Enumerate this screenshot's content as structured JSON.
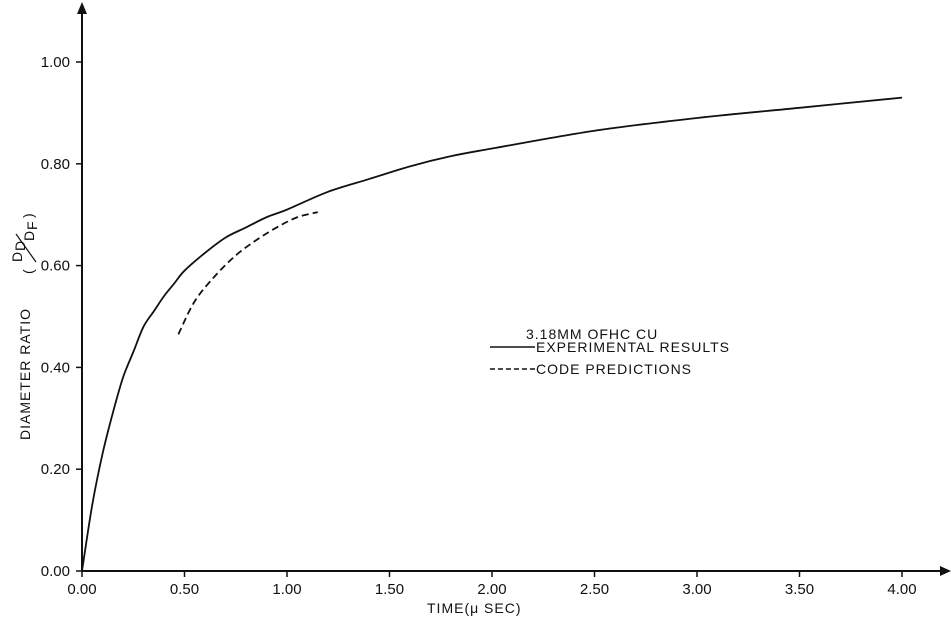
{
  "chart_data": {
    "type": "line",
    "xlabel": "TIME(μ SEC)",
    "ylabel": "DIAMETER RATIO",
    "ylabel_fraction": {
      "numerator": "D",
      "numerator_sub": "D",
      "denominator": "D",
      "denominator_sub": "F"
    },
    "xlim": [
      0,
      4.0
    ],
    "ylim": [
      0,
      1.0
    ],
    "x_ticks": [
      "0.00",
      "0.50",
      "1.00",
      "1.50",
      "2.00",
      "2.50",
      "3.00",
      "3.50",
      "4.00"
    ],
    "y_ticks": [
      "0.00",
      "0.20",
      "0.40",
      "0.60",
      "0.80",
      "1.00"
    ],
    "grid": false,
    "legend": {
      "placement": "center-right",
      "title": "3.18MM OFHC CU",
      "entries": [
        "EXPERIMENTAL RESULTS",
        "CODE PREDICTIONS"
      ]
    },
    "series": [
      {
        "name": "EXPERIMENTAL RESULTS",
        "style": "solid",
        "x": [
          0.0,
          0.05,
          0.1,
          0.15,
          0.2,
          0.25,
          0.3,
          0.35,
          0.4,
          0.45,
          0.5,
          0.6,
          0.7,
          0.8,
          0.9,
          1.0,
          1.2,
          1.4,
          1.6,
          1.8,
          2.0,
          2.5,
          3.0,
          3.5,
          4.0
        ],
        "y": [
          0.0,
          0.13,
          0.23,
          0.31,
          0.38,
          0.43,
          0.48,
          0.51,
          0.54,
          0.565,
          0.59,
          0.625,
          0.655,
          0.675,
          0.695,
          0.71,
          0.745,
          0.77,
          0.795,
          0.815,
          0.83,
          0.865,
          0.89,
          0.91,
          0.93
        ]
      },
      {
        "name": "CODE PREDICTIONS",
        "style": "dashed",
        "x": [
          0.47,
          0.55,
          0.65,
          0.75,
          0.85,
          0.95,
          1.05,
          1.15
        ],
        "y": [
          0.465,
          0.53,
          0.58,
          0.62,
          0.65,
          0.675,
          0.695,
          0.705
        ]
      }
    ]
  }
}
